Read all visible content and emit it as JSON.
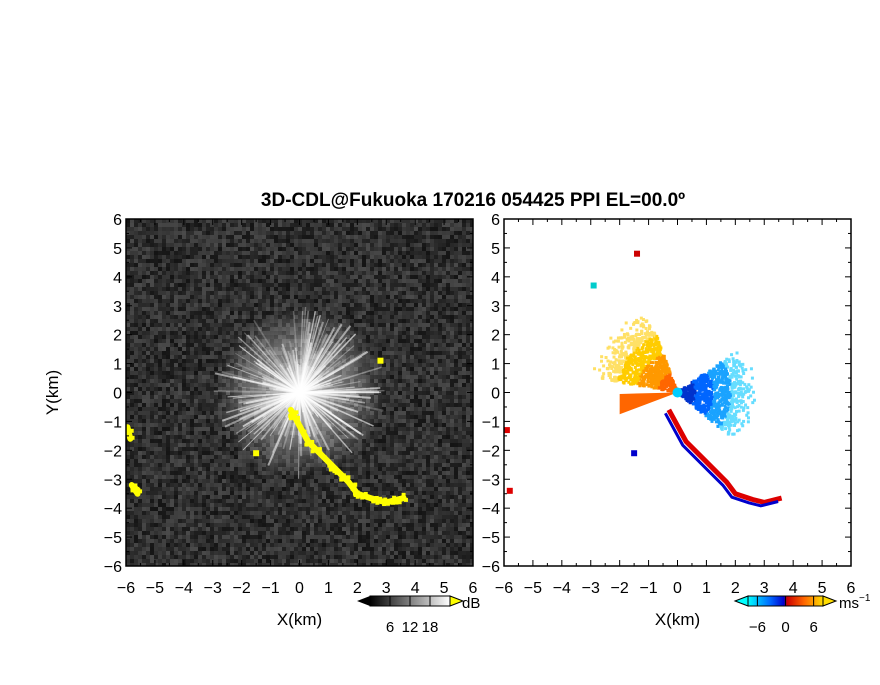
{
  "chart_data": [
    {
      "type": "heatmap",
      "panel": "reflectivity",
      "title": "3D-CDL@Fukuoka 170216 054425 PPI EL=00.0º",
      "xlabel": "X(km)",
      "ylabel": "Y(km)",
      "xlim": [
        -6,
        6
      ],
      "ylim": [
        -6,
        6
      ],
      "xticks": [
        "-6",
        "-5",
        "-4",
        "-3",
        "-2",
        "-1",
        "0",
        "1",
        "2",
        "3",
        "4",
        "5",
        "6"
      ],
      "yticks": [
        "-6",
        "-5",
        "-4",
        "-3",
        "-2",
        "-1",
        "0",
        "1",
        "2",
        "3",
        "4",
        "5",
        "6"
      ],
      "colormap": {
        "name": "grayscale",
        "low": "#000000",
        "high": "#ffffff",
        "highlight": "#ffff00"
      },
      "colorbar": {
        "unit": "dB",
        "ticks": [
          "6",
          "12",
          "18"
        ],
        "range": [
          0,
          24
        ]
      },
      "features": [
        {
          "kind": "radial_bright_streaks",
          "center": [
            0,
            0
          ],
          "max_range_km": 3.0,
          "color": "#ffffff"
        },
        {
          "kind": "yellow_echo_band",
          "color": "#ffff00",
          "path": [
            [
              -0.3,
              -0.6
            ],
            [
              0.3,
              -1.7
            ],
            [
              1.2,
              -2.6
            ],
            [
              1.7,
              -3.1
            ],
            [
              2.0,
              -3.5
            ],
            [
              2.6,
              -3.7
            ],
            [
              3.0,
              -3.8
            ],
            [
              3.6,
              -3.65
            ]
          ]
        },
        {
          "kind": "yellow_echo_band",
          "color": "#ffff00",
          "path": [
            [
              -5.95,
              -1.2
            ],
            [
              -5.85,
              -1.6
            ]
          ]
        },
        {
          "kind": "yellow_echo_band",
          "color": "#ffff00",
          "path": [
            [
              -5.8,
              -3.2
            ],
            [
              -5.6,
              -3.5
            ]
          ]
        },
        {
          "kind": "yellow_echo_spot",
          "color": "#ffff00",
          "points": [
            [
              -1.5,
              -2.1
            ],
            [
              1.5,
              -2.9
            ],
            [
              2.8,
              1.1
            ]
          ]
        }
      ]
    },
    {
      "type": "heatmap",
      "panel": "doppler_velocity",
      "xlabel": "X(km)",
      "xlim": [
        -6,
        6
      ],
      "ylim": [
        -6,
        6
      ],
      "xticks": [
        "-6",
        "-5",
        "-4",
        "-3",
        "-2",
        "-1",
        "0",
        "1",
        "2",
        "3",
        "4",
        "5",
        "6"
      ],
      "yticks": [
        "-6",
        "-5",
        "-4",
        "-3",
        "-2",
        "-1",
        "0",
        "1",
        "2",
        "3",
        "4",
        "5",
        "6"
      ],
      "colormap": {
        "name": "doppler",
        "stops": [
          "#00ffff",
          "#0066ff",
          "#0000cc",
          "#cc0000",
          "#ff6600",
          "#ffcc00"
        ]
      },
      "colorbar": {
        "unit": "ms",
        "unit_exp": "−1",
        "ticks": [
          "−6",
          "0",
          "6"
        ],
        "range": [
          -8,
          8
        ]
      },
      "features": [
        {
          "kind": "approaching_sector",
          "color": "#ffcc00",
          "angle_from_deg": 110,
          "angle_to_deg": 170,
          "range_km": 2.8
        },
        {
          "kind": "receding_sector",
          "color": "#00bfff",
          "angle_from_deg": -40,
          "angle_to_deg": 35,
          "range_km": 2.5
        },
        {
          "kind": "red_blue_band",
          "path": [
            [
              -0.3,
              -0.6
            ],
            [
              0.3,
              -1.7
            ],
            [
              1.2,
              -2.6
            ],
            [
              1.7,
              -3.1
            ],
            [
              2.0,
              -3.5
            ],
            [
              2.6,
              -3.7
            ],
            [
              3.0,
              -3.8
            ],
            [
              3.6,
              -3.65
            ]
          ]
        },
        {
          "kind": "orange_wedge",
          "color": "#ff6600",
          "from": [
            -2.0,
            -0.4
          ],
          "to": [
            0,
            0
          ]
        }
      ]
    }
  ]
}
